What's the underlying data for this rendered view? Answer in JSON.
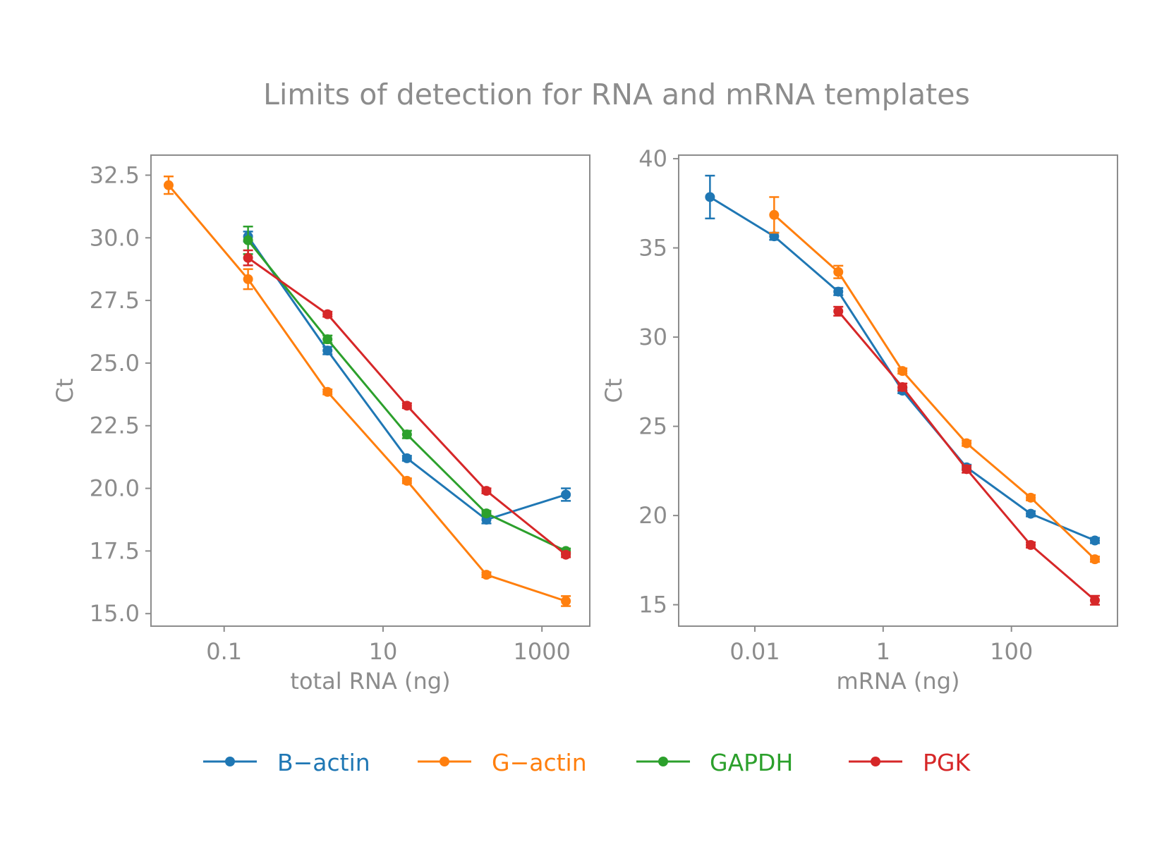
{
  "figure": {
    "title": "Limits of detection for RNA and mRNA templates"
  },
  "colors": {
    "B-actin": "#1f77b4",
    "G-actin": "#ff7f0e",
    "GAPDH": "#2ca02c",
    "PGK": "#d62728",
    "axis": "#8c8c8c"
  },
  "legend": {
    "placement": "bottom-center",
    "items": [
      {
        "label": "B−actin",
        "series": "B-actin"
      },
      {
        "label": "G−actin",
        "series": "G-actin"
      },
      {
        "label": "GAPDH",
        "series": "GAPDH"
      },
      {
        "label": "PGK",
        "series": "PGK"
      }
    ]
  },
  "chart_data": [
    {
      "type": "line",
      "xlabel": "total RNA (ng)",
      "ylabel": "Ct",
      "xscale": "log",
      "xlim": [
        0.012,
        4000
      ],
      "ylim": [
        14.5,
        33.3
      ],
      "xticks": [
        {
          "value": 0.1,
          "label": "0.1"
        },
        {
          "value": 10,
          "label": "10"
        },
        {
          "value": 1000,
          "label": "1000"
        }
      ],
      "yticks": [
        {
          "value": 15,
          "label": "15.0"
        },
        {
          "value": 17.5,
          "label": "17.5"
        },
        {
          "value": 20,
          "label": "20.0"
        },
        {
          "value": 22.5,
          "label": "22.5"
        },
        {
          "value": 25,
          "label": "25.0"
        },
        {
          "value": 27.5,
          "label": "27.5"
        },
        {
          "value": 30,
          "label": "30.0"
        },
        {
          "value": 32.5,
          "label": "32.5"
        }
      ],
      "series": [
        {
          "name": "B-actin",
          "x": [
            0.2,
            2,
            20,
            200,
            2000
          ],
          "y": [
            30.05,
            25.5,
            21.2,
            18.75,
            19.75
          ],
          "err": [
            0.2,
            0.15,
            0.1,
            0.15,
            0.25
          ]
        },
        {
          "name": "G-actin",
          "x": [
            0.02,
            0.2,
            2,
            20,
            200,
            2000
          ],
          "y": [
            32.1,
            28.35,
            23.85,
            20.3,
            16.55,
            15.5
          ],
          "err": [
            0.35,
            0.4,
            0.1,
            0.1,
            0.1,
            0.2
          ]
        },
        {
          "name": "GAPDH",
          "x": [
            0.2,
            2,
            20,
            200,
            2000
          ],
          "y": [
            29.9,
            25.95,
            22.15,
            19.0,
            17.5
          ],
          "err": [
            0.55,
            0.15,
            0.15,
            0.1,
            0.1
          ]
        },
        {
          "name": "PGK",
          "x": [
            0.2,
            2,
            20,
            200,
            2000
          ],
          "y": [
            29.2,
            26.95,
            23.3,
            19.9,
            17.35
          ],
          "err": [
            0.3,
            0.1,
            0.1,
            0.1,
            0.1
          ]
        }
      ]
    },
    {
      "type": "line",
      "xlabel": "mRNA (ng)",
      "ylabel": "Ct",
      "xscale": "log",
      "xlim": [
        0.00065,
        4500
      ],
      "ylim": [
        13.8,
        40.2
      ],
      "xticks": [
        {
          "value": 0.01,
          "label": "0.01"
        },
        {
          "value": 1,
          "label": "1"
        },
        {
          "value": 100,
          "label": "100"
        }
      ],
      "yticks": [
        {
          "value": 15,
          "label": "15"
        },
        {
          "value": 20,
          "label": "20"
        },
        {
          "value": 25,
          "label": "25"
        },
        {
          "value": 30,
          "label": "30"
        },
        {
          "value": 35,
          "label": "35"
        },
        {
          "value": 40,
          "label": "40"
        }
      ],
      "series": [
        {
          "name": "B-actin",
          "x": [
            0.002,
            0.02,
            0.2,
            2,
            20,
            200,
            2000
          ],
          "y": [
            37.85,
            35.65,
            32.55,
            27.0,
            22.7,
            20.1,
            18.6
          ],
          "err": [
            1.2,
            0.2,
            0.2,
            0.15,
            0.15,
            0.15,
            0.15
          ]
        },
        {
          "name": "G-actin",
          "x": [
            0.02,
            0.2,
            2,
            20,
            200,
            2000
          ],
          "y": [
            36.85,
            33.65,
            28.1,
            24.05,
            21.0,
            17.55
          ],
          "err": [
            1.0,
            0.35,
            0.15,
            0.15,
            0.15,
            0.15
          ]
        },
        {
          "name": "PGK",
          "x": [
            0.2,
            2,
            20,
            200,
            2000
          ],
          "y": [
            31.45,
            27.2,
            22.6,
            18.35,
            15.25
          ],
          "err": [
            0.25,
            0.2,
            0.2,
            0.15,
            0.25
          ]
        }
      ]
    }
  ]
}
